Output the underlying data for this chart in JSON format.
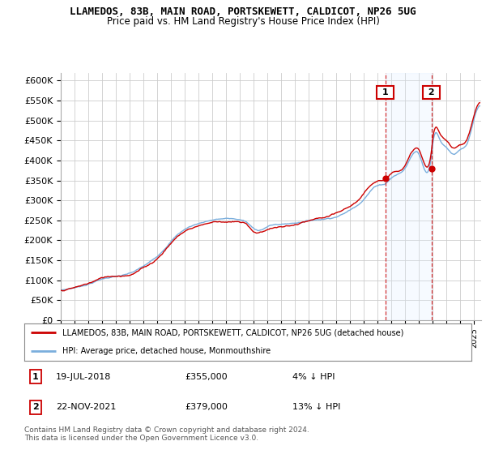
{
  "title": "LLAMEDOS, 83B, MAIN ROAD, PORTSKEWETT, CALDICOT, NP26 5UG",
  "subtitle": "Price paid vs. HM Land Registry's House Price Index (HPI)",
  "ylabel_ticks": [
    "£0",
    "£50K",
    "£100K",
    "£150K",
    "£200K",
    "£250K",
    "£300K",
    "£350K",
    "£400K",
    "£450K",
    "£500K",
    "£550K",
    "£600K"
  ],
  "ytick_values": [
    0,
    50000,
    100000,
    150000,
    200000,
    250000,
    300000,
    350000,
    400000,
    450000,
    500000,
    550000,
    600000
  ],
  "ylim": [
    0,
    620000
  ],
  "xlim_start": 1995.0,
  "xlim_end": 2025.5,
  "hpi_color": "#7aaedd",
  "price_color": "#cc0000",
  "shade_color": "#ddeeff",
  "sale1_date": 2018.54,
  "sale1_price": 355000,
  "sale2_date": 2021.9,
  "sale2_price": 379000,
  "legend_house_label": "LLAMEDOS, 83B, MAIN ROAD, PORTSKEWETT, CALDICOT, NP26 5UG (detached house)",
  "legend_hpi_label": "HPI: Average price, detached house, Monmouthshire",
  "ann1_num": "1",
  "ann1_date": "19-JUL-2018",
  "ann1_price": "£355,000",
  "ann1_note": "4% ↓ HPI",
  "ann2_num": "2",
  "ann2_date": "22-NOV-2021",
  "ann2_price": "£379,000",
  "ann2_note": "13% ↓ HPI",
  "footnote_line1": "Contains HM Land Registry data © Crown copyright and database right 2024.",
  "footnote_line2": "This data is licensed under the Open Government Licence v3.0.",
  "background_color": "#ffffff",
  "grid_color": "#cccccc"
}
